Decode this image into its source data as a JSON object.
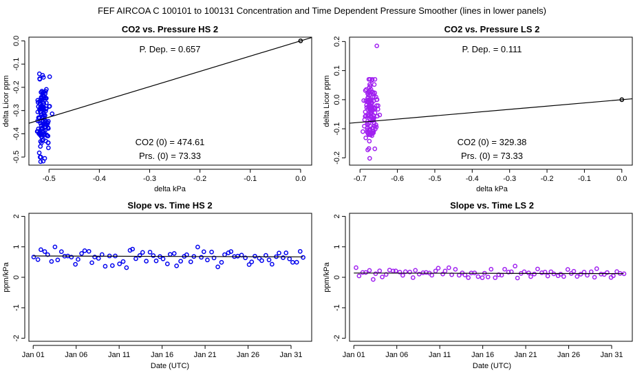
{
  "figure": {
    "suptitle": "FEF   AIRCOA C   100101 to 100131   Concentration and Time Dependent Pressure Smoother (lines in lower panels)"
  },
  "colors": {
    "hs": "#0000ee",
    "ls": "#a020f0",
    "line": "#000000",
    "frame": "#000000"
  },
  "chart_data": [
    {
      "id": "hs-scatter",
      "type": "scatter",
      "title": "CO2 vs. Pressure HS 2",
      "xlabel": "delta kPa",
      "ylabel": "delta Licor ppm",
      "xlim": [
        -0.54,
        0.022
      ],
      "ylim": [
        -0.535,
        0.016
      ],
      "xticks": [
        -0.5,
        -0.4,
        -0.3,
        -0.2,
        -0.1,
        0.0
      ],
      "xtick_labels": [
        "-0.5",
        "-0.4",
        "-0.3",
        "-0.2",
        "-0.1",
        "0.0"
      ],
      "yticks": [
        0.0,
        -0.1,
        -0.2,
        -0.3,
        -0.4,
        -0.5
      ],
      "ytick_labels": [
        "0.0",
        "-0.1",
        "-0.2",
        "-0.3",
        "-0.4",
        "-0.5"
      ],
      "color_key": "hs",
      "cluster": {
        "x_center": -0.512,
        "x_spread": 0.01,
        "y_min": -0.52,
        "y_max": -0.14,
        "y_center": -0.33,
        "count": 130,
        "seed": 11
      },
      "origin_point": [
        0.0,
        0.0
      ],
      "fit_line": {
        "slope": 0.657,
        "intercept": 0.0
      },
      "annotations": {
        "pdep": "P. Dep. =  0.657",
        "co2": "CO2 (0) =  474.61",
        "prs": "Prs. (0) = 73.33"
      }
    },
    {
      "id": "ls-scatter",
      "type": "scatter",
      "title": "CO2 vs. Pressure LS 2",
      "xlabel": "delta kPa",
      "ylabel": "delta Licor ppm",
      "xlim": [
        -0.728,
        0.028
      ],
      "ylim": [
        -0.225,
        0.215
      ],
      "xticks": [
        -0.7,
        -0.6,
        -0.5,
        -0.4,
        -0.3,
        -0.2,
        -0.1,
        0.0
      ],
      "xtick_labels": [
        "-0.7",
        "-0.6",
        "-0.5",
        "-0.4",
        "-0.3",
        "-0.2",
        "-0.1",
        "0.0"
      ],
      "yticks": [
        0.2,
        0.1,
        0.0,
        -0.1,
        -0.2
      ],
      "ytick_labels": [
        "0.2",
        "0.1",
        "0.0",
        "-0.1",
        "-0.2"
      ],
      "color_key": "ls",
      "cluster": {
        "x_center": -0.672,
        "x_spread": 0.012,
        "y_min": -0.21,
        "y_max": 0.07,
        "y_center": -0.05,
        "count": 130,
        "seed": 23
      },
      "outlier_points": [
        [
          -0.655,
          0.185
        ]
      ],
      "origin_point": [
        0.0,
        0.0
      ],
      "fit_line": {
        "slope": 0.111,
        "intercept": 0.0
      },
      "annotations": {
        "pdep": "P. Dep. =  0.111",
        "co2": "CO2 (0) =  329.38",
        "prs": "Prs. (0) = 73.33"
      }
    },
    {
      "id": "hs-time",
      "type": "scatter",
      "title": "Slope vs. Time HS 2",
      "xlabel": "Date (UTC)",
      "ylabel": "ppm/kPa",
      "xlim": [
        -0.5,
        32.4
      ],
      "ylim": [
        -2.1,
        2.1
      ],
      "xticks": [
        0,
        5,
        10,
        15,
        20,
        25,
        30
      ],
      "xtick_labels": [
        "Jan 01",
        "Jan 06",
        "Jan 11",
        "Jan 16",
        "Jan 21",
        "Jan 26",
        "Jan 31"
      ],
      "yticks": [
        2,
        1,
        0,
        -1,
        -2
      ],
      "ytick_labels": [
        "2",
        "1",
        "0",
        "-1",
        "-2"
      ],
      "color_key": "hs",
      "series_gen": {
        "x_start": 0.1,
        "x_end": 31.4,
        "count": 80,
        "mean": 0.66,
        "spread": 0.33,
        "seed": 5
      },
      "smoother": {
        "x": [
          0,
          31.4
        ],
        "y": [
          0.7,
          0.67
        ]
      }
    },
    {
      "id": "ls-time",
      "type": "scatter",
      "title": "Slope vs. Time LS 2",
      "xlabel": "Date (UTC)",
      "ylabel": "ppm/kPa",
      "xlim": [
        -0.5,
        32.4
      ],
      "ylim": [
        -2.1,
        2.1
      ],
      "xticks": [
        0,
        5,
        10,
        15,
        20,
        25,
        30
      ],
      "xtick_labels": [
        "Jan 01",
        "Jan 06",
        "Jan 11",
        "Jan 16",
        "Jan 21",
        "Jan 26",
        "Jan 31"
      ],
      "yticks": [
        2,
        1,
        0,
        -1,
        -2
      ],
      "ytick_labels": [
        "2",
        "1",
        "0",
        "-1",
        "-2"
      ],
      "color_key": "ls",
      "series_gen": {
        "x_start": 0.3,
        "x_end": 31.4,
        "count": 82,
        "mean": 0.12,
        "spread": 0.2,
        "seed": 9
      },
      "smoother": {
        "x": [
          0,
          31.4
        ],
        "y": [
          0.14,
          0.12
        ]
      }
    }
  ]
}
